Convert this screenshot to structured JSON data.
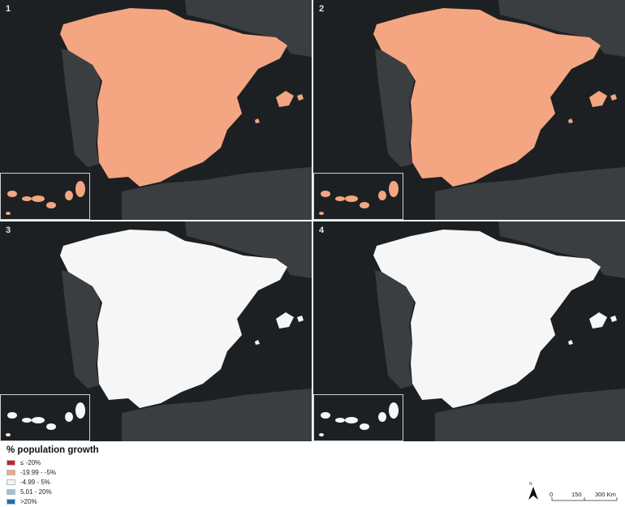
{
  "panels": [
    {
      "number": "1",
      "dominant_class": "-19.99 - -5%"
    },
    {
      "number": "2",
      "dominant_class": "-19.99 - -5%"
    },
    {
      "number": "3",
      "dominant_class": "-4.99 - 5%"
    },
    {
      "number": "4",
      "dominant_class": "-4.99 - 5%"
    }
  ],
  "legend": {
    "title": "% population growth",
    "items": [
      {
        "label": "≤ -20%",
        "color": "#c8202f"
      },
      {
        "label": "-19.99 - -5%",
        "color": "#f4a582"
      },
      {
        "label": "-4.99 - 5%",
        "color": "#f6f6f6"
      },
      {
        "label": "5.01 - 20%",
        "color": "#92c5de"
      },
      {
        "label": ">20%",
        "color": "#1f6fad"
      }
    ]
  },
  "north_label": "N",
  "scale": {
    "ticks": [
      "0",
      "150",
      "300 Km"
    ]
  },
  "colors": {
    "sea": "#1c2022",
    "neighbor_land": "#3b3e40",
    "inset_border": "#cfcfcf"
  }
}
